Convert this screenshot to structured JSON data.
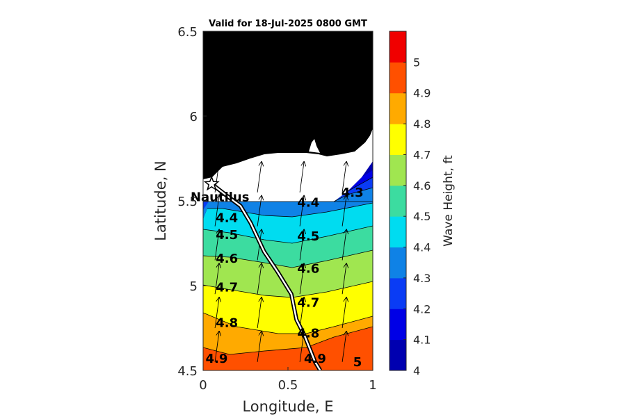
{
  "map": {
    "title": "Valid for 18-Jul-2025 0800 GMT",
    "xlabel": "Longitude, E",
    "ylabel": "Latitude, N",
    "x_ticks": [
      "0",
      "0.5",
      "1"
    ],
    "y_ticks": [
      "4.5",
      "5",
      "5.5",
      "6",
      "6.5"
    ],
    "xlim": [
      0,
      1
    ],
    "ylim": [
      4.5,
      6.5
    ],
    "land_color": "#000000",
    "coast_mask_color": "#ffffff",
    "station": {
      "label": "Nautilus",
      "lon": 0.05,
      "lat": 5.6
    },
    "track": [
      [
        0.05,
        5.6
      ],
      [
        0.14,
        5.53
      ],
      [
        0.22,
        5.47
      ],
      [
        0.28,
        5.37
      ],
      [
        0.36,
        5.2
      ],
      [
        0.44,
        5.08
      ],
      [
        0.52,
        4.95
      ],
      [
        0.55,
        4.8
      ],
      [
        0.6,
        4.7
      ],
      [
        0.66,
        4.55
      ],
      [
        0.69,
        4.5
      ]
    ]
  },
  "chart_data": {
    "type": "heatmap",
    "title": "Valid for 18-Jul-2025 0800 GMT",
    "xlabel": "Longitude, E",
    "ylabel": "Latitude, N",
    "xlim": [
      0,
      1
    ],
    "ylim": [
      4.5,
      6.5
    ],
    "colorbar": {
      "label": "Wave Height, ft",
      "ticks": [
        "4",
        "4.1",
        "4.2",
        "4.3",
        "4.4",
        "4.5",
        "4.6",
        "4.7",
        "4.8",
        "4.9",
        "5"
      ],
      "range": [
        4,
        5.1
      ],
      "colors": [
        "#0000b0",
        "#0000e6",
        "#0a3cf5",
        "#0f82e6",
        "#00dcf0",
        "#3cdca0",
        "#a0e650",
        "#ffff00",
        "#ffaa00",
        "#ff5000",
        "#f00000"
      ]
    },
    "contour_labels": [
      {
        "text": "4.3",
        "lon": 0.88,
        "lat": 5.55
      },
      {
        "text": "4.4",
        "lon": 0.62,
        "lat": 5.49
      },
      {
        "text": "4.4",
        "lon": 0.14,
        "lat": 5.4
      },
      {
        "text": "4.5",
        "lon": 0.14,
        "lat": 5.3
      },
      {
        "text": "4.5",
        "lon": 0.62,
        "lat": 5.29
      },
      {
        "text": "4.6",
        "lon": 0.14,
        "lat": 5.16
      },
      {
        "text": "4.6",
        "lon": 0.62,
        "lat": 5.1
      },
      {
        "text": "4.7",
        "lon": 0.14,
        "lat": 4.99
      },
      {
        "text": "4.7",
        "lon": 0.62,
        "lat": 4.9
      },
      {
        "text": "4.8",
        "lon": 0.14,
        "lat": 4.78
      },
      {
        "text": "4.8",
        "lon": 0.62,
        "lat": 4.72
      },
      {
        "text": "4.9",
        "lon": 0.08,
        "lat": 4.57
      },
      {
        "text": "4.9",
        "lon": 0.66,
        "lat": 4.57
      },
      {
        "text": "5",
        "lon": 0.91,
        "lat": 4.55
      }
    ]
  }
}
